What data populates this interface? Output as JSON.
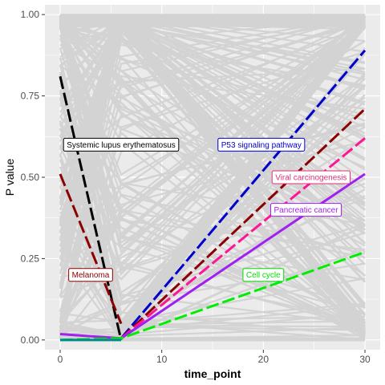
{
  "chart_data": {
    "type": "line",
    "xlabel": "time_point",
    "ylabel": "P value",
    "xlim": [
      -1.5,
      31.5
    ],
    "ylim": [
      -0.03,
      1.03
    ],
    "x_ticks": [
      0,
      10,
      20,
      30
    ],
    "y_ticks": [
      0.0,
      0.25,
      0.5,
      0.75,
      1.0
    ],
    "y_tick_labels": [
      "0.00",
      "0.25",
      "0.50",
      "0.75",
      "1.00"
    ],
    "grid": true,
    "legend": "none",
    "background_color": "#ebebeb",
    "grid_color": "#ffffff",
    "background_series_color": "#d3d3d3",
    "series": [
      {
        "color": "#000000",
        "dashed": true,
        "points": [
          [
            0,
            0.81
          ],
          [
            6,
            0.0
          ]
        ]
      },
      {
        "color": "#8b0000",
        "dashed": true,
        "points": [
          [
            0,
            0.51
          ],
          [
            6,
            0.05
          ]
        ]
      },
      {
        "color": "#0000cd",
        "dashed": true,
        "points": [
          [
            6,
            0.005
          ],
          [
            30,
            0.89
          ]
        ]
      },
      {
        "color": "#8b0000",
        "dashed": true,
        "points": [
          [
            6,
            0.005
          ],
          [
            30,
            0.71
          ]
        ]
      },
      {
        "color": "#ff1493",
        "dashed": true,
        "points": [
          [
            6,
            0.005
          ],
          [
            30,
            0.62
          ]
        ]
      },
      {
        "color": "#a020f0",
        "dashed": false,
        "points": [
          [
            0,
            0.018
          ],
          [
            6,
            0.005
          ],
          [
            30,
            0.51
          ]
        ]
      },
      {
        "color": "#00ee00",
        "dashed": true,
        "points": [
          [
            0,
            0.0
          ],
          [
            6,
            0.005
          ],
          [
            30,
            0.27
          ]
        ]
      },
      {
        "color": "#008b8b",
        "dashed": false,
        "points": [
          [
            0,
            0.0
          ],
          [
            6,
            0.0
          ]
        ]
      }
    ],
    "annotations": [
      {
        "label": "Systemic lupus erythematosus",
        "x": 6.0,
        "y": 0.6,
        "color": "#000000",
        "anchor": "middle"
      },
      {
        "label": "P53 signaling pathway",
        "x": 19.8,
        "y": 0.6,
        "color": "#0000cd",
        "anchor": "middle"
      },
      {
        "label": "Viral carcinogenesis",
        "x": 24.7,
        "y": 0.5,
        "color": "#e0307a",
        "anchor": "middle"
      },
      {
        "label": "Pancreatic cancer",
        "x": 24.2,
        "y": 0.4,
        "color": "#a020f0",
        "anchor": "middle"
      },
      {
        "label": "Melanoma",
        "x": 3.0,
        "y": 0.2,
        "color": "#8b0000",
        "anchor": "middle"
      },
      {
        "label": "Cell cycle",
        "x": 20.0,
        "y": 0.2,
        "color": "#00dd00",
        "anchor": "middle"
      }
    ]
  }
}
